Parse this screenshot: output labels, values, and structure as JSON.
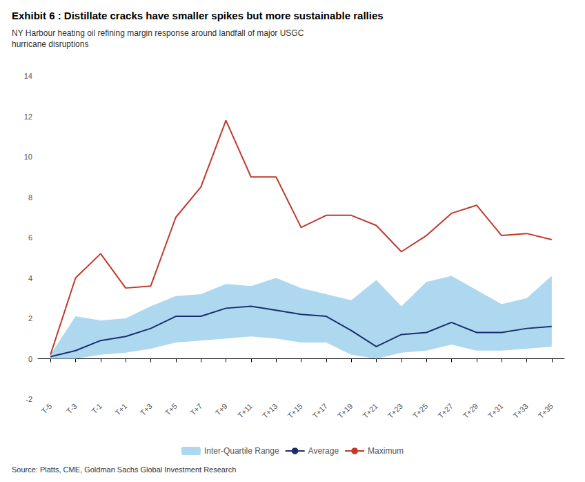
{
  "chart_data": {
    "type": "line",
    "title": "Exhibit 6 : Distillate cracks have smaller spikes but more sustainable rallies",
    "subtitle": "NY Harbour heating oil refining margin response around landfall of major USGC\nhurricane disruptions",
    "source": "Source: Platts, CME, Goldman Sachs Global Investment Research",
    "categories": [
      "T-5",
      "T-3",
      "T-1",
      "T+1",
      "T+3",
      "T+5",
      "T+7",
      "T+9",
      "T+11",
      "T+13",
      "T+15",
      "T+17",
      "T+19",
      "T+21",
      "T+23",
      "T+25",
      "T+27",
      "T+29",
      "T+31",
      "T+33",
      "T+35"
    ],
    "series": [
      {
        "name": "Inter-Quartile Range",
        "type": "band",
        "color": "#add8f0",
        "lower": [
          0.0,
          0.0,
          0.2,
          0.3,
          0.5,
          0.8,
          0.9,
          1.0,
          1.1,
          1.0,
          0.8,
          0.8,
          0.2,
          0.0,
          0.3,
          0.4,
          0.7,
          0.4,
          0.4,
          0.5,
          0.6
        ],
        "upper": [
          0.2,
          2.1,
          1.9,
          2.0,
          2.6,
          3.1,
          3.2,
          3.7,
          3.6,
          4.0,
          3.5,
          3.2,
          2.9,
          3.9,
          2.6,
          3.8,
          4.1,
          3.4,
          2.7,
          3.0,
          4.1
        ]
      },
      {
        "name": "Average",
        "type": "line",
        "color": "#1a2e6b",
        "values": [
          0.1,
          0.4,
          0.9,
          1.1,
          1.5,
          2.1,
          2.1,
          2.5,
          2.6,
          2.4,
          2.2,
          2.1,
          1.4,
          0.6,
          1.2,
          1.3,
          1.8,
          1.3,
          1.3,
          1.5,
          1.6
        ]
      },
      {
        "name": "Maximum",
        "type": "line",
        "color": "#c0392b",
        "values": [
          0.2,
          4.0,
          5.2,
          3.5,
          3.6,
          7.0,
          8.5,
          11.8,
          9.0,
          9.0,
          6.5,
          7.1,
          7.1,
          6.6,
          5.3,
          6.1,
          7.2,
          7.6,
          6.1,
          6.2,
          5.9
        ]
      }
    ],
    "ylim": [
      -2,
      14
    ],
    "yticks": [
      -2,
      0,
      2,
      4,
      6,
      8,
      10,
      12,
      14
    ],
    "grid": false,
    "legend": "bottom"
  }
}
